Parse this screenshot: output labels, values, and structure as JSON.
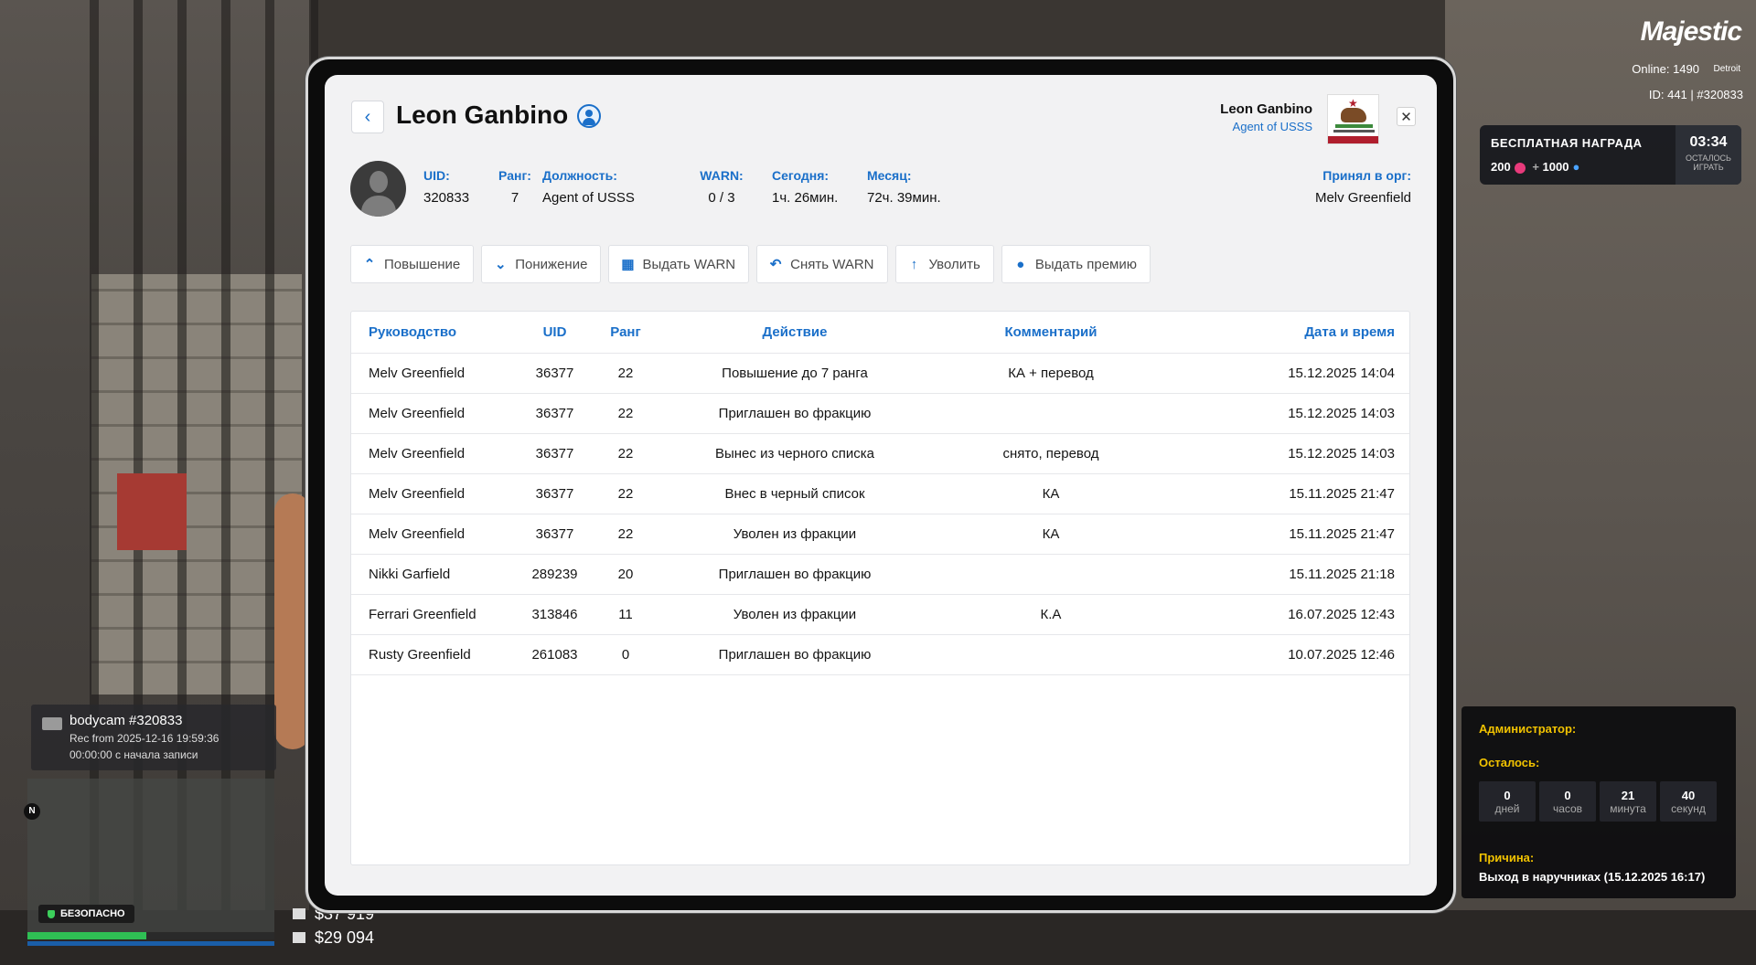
{
  "player": {
    "name": "Leon Ganbino",
    "avatar_icon": "user-silhouette-icon"
  },
  "header_right": {
    "name": "Leon Ganbino",
    "rank_title": "Agent of USSS"
  },
  "info": {
    "uid_label": "UID:",
    "uid_value": "320833",
    "rank_label": "Ранг:",
    "rank_value": "7",
    "position_label": "Должность:",
    "position_value": "Agent of USSS",
    "warn_label": "WARN:",
    "warn_value": "0 / 3",
    "today_label": "Сегодня:",
    "today_value": "1ч. 26мин.",
    "month_label": "Месяц:",
    "month_value": "72ч. 39мин.",
    "accepted_label": "Принял в орг:",
    "accepted_value": "Melv Greenfield"
  },
  "actions": [
    {
      "label": "Повышение",
      "icon": "chevron-up-icon"
    },
    {
      "label": "Понижение",
      "icon": "chevron-down-icon"
    },
    {
      "label": "Выдать WARN",
      "icon": "document-warn-icon"
    },
    {
      "label": "Снять WARN",
      "icon": "reply-icon"
    },
    {
      "label": "Уволить",
      "icon": "dismiss-icon"
    },
    {
      "label": "Выдать премию",
      "icon": "coin-icon"
    }
  ],
  "table": {
    "headers": [
      "Руководство",
      "UID",
      "Ранг",
      "Действие",
      "Комментарий",
      "Дата и время"
    ],
    "rows": [
      [
        "Melv Greenfield",
        "36377",
        "22",
        "Повышение до 7 ранга",
        "КА + перевод",
        "15.12.2025 14:04"
      ],
      [
        "Melv Greenfield",
        "36377",
        "22",
        "Приглашен во фракцию",
        "",
        "15.12.2025 14:03"
      ],
      [
        "Melv Greenfield",
        "36377",
        "22",
        "Вынес из черного списка",
        "снято, перевод",
        "15.12.2025 14:03"
      ],
      [
        "Melv Greenfield",
        "36377",
        "22",
        "Внес в черный список",
        "КА",
        "15.11.2025 21:47"
      ],
      [
        "Melv Greenfield",
        "36377",
        "22",
        "Уволен из фракции",
        "КА",
        "15.11.2025 21:47"
      ],
      [
        "Nikki Garfield",
        "289239",
        "20",
        "Приглашен во фракцию",
        "",
        "15.11.2025 21:18"
      ],
      [
        "Ferrari Greenfield",
        "313846",
        "11",
        "Уволен из фракции",
        "К.А",
        "16.07.2025 12:43"
      ],
      [
        "Rusty Greenfield",
        "261083",
        "0",
        "Приглашен во фракцию",
        "",
        "10.07.2025 12:46"
      ]
    ]
  },
  "hud": {
    "logo": "Majestic",
    "online": "Online: 1490",
    "city": "Detroit",
    "id_line": "ID: 441 | #320833",
    "reward_title": "БЕСПЛАТНАЯ НАГРАДА",
    "reward_a": "200",
    "reward_plus": "+",
    "reward_b": "1000",
    "reward_timer": "03:34",
    "reward_timer_label1": "ОСТАЛОСЬ",
    "reward_timer_label2": "ИГРАТЬ",
    "admin_label": "Администратор:",
    "left_label": "Осталось:",
    "countdown": [
      {
        "n": "0",
        "u": "дней"
      },
      {
        "n": "0",
        "u": "часов"
      },
      {
        "n": "21",
        "u": "минута"
      },
      {
        "n": "40",
        "u": "секунд"
      }
    ],
    "reason_label": "Причина:",
    "reason_value": "Выход в наручниках (15.12.2025 16:17)",
    "bodycam_title": "bodycam #320833",
    "bodycam_rec": "Rec from 2025-12-16 19:59:36",
    "bodycam_elapsed": "00:00:00 с начала записи",
    "compass": "N",
    "safe_label": "БЕЗОПАСНО",
    "money_cash": "$37 919",
    "money_bank": "$29 094"
  }
}
